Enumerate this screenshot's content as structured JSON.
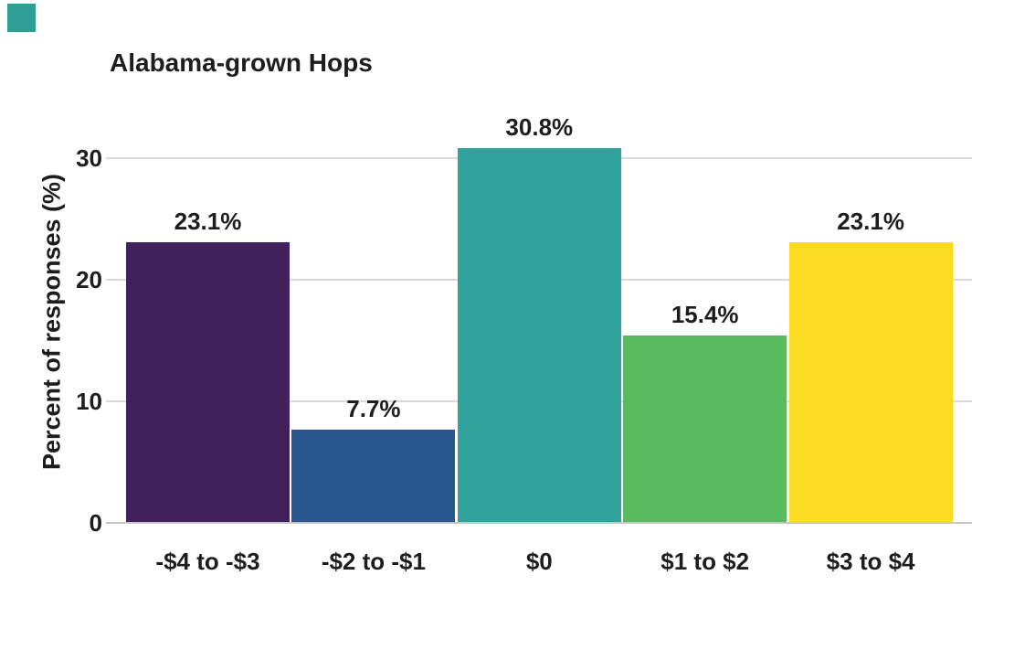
{
  "page": {
    "background": "#ffffff",
    "text_color": "#1d1d1d"
  },
  "corner_marker": {
    "color": "#2f9f96"
  },
  "chart_data": {
    "type": "bar",
    "title": "Alabama-grown Hops",
    "xlabel": "",
    "ylabel": "Percent of responses (%)",
    "categories": [
      "-$4 to -$3",
      "-$2 to -$1",
      "$0",
      "$1 to $2",
      "$3 to $4"
    ],
    "values": [
      23.1,
      7.7,
      30.8,
      15.4,
      23.1
    ],
    "value_labels": [
      "23.1%",
      "7.7%",
      "30.8%",
      "15.4%",
      "23.1%"
    ],
    "bar_colors": [
      "#41215d",
      "#2a568e",
      "#30a39c",
      "#5abb5e",
      "#fbdb24"
    ],
    "yticks": [
      0,
      10,
      20,
      30
    ],
    "ylim": [
      0,
      34
    ],
    "grid": "horizontal",
    "gridline_color": "#dadada",
    "baseline_color": "#c6c6c6",
    "legend": "none"
  }
}
